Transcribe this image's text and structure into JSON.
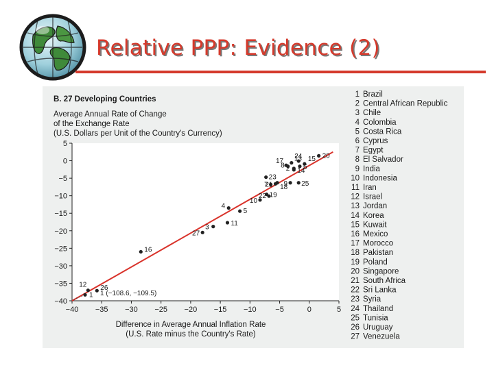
{
  "slide": {
    "title": "Relative PPP: Evidence (2)"
  },
  "icons": {
    "globe": "globe-icon"
  },
  "colors": {
    "title": "#d43a2c",
    "rule": "#d43a2c",
    "line": "#d9332b",
    "point": "#222222",
    "panel": "#eef0ef"
  },
  "chart_data": {
    "type": "scatter",
    "heading": "B. 27 Developing Countries",
    "ylabel_lines": [
      "Average Annual Rate of Change",
      "of the Exchange Rate",
      "(U.S. Dollars per Unit of the Country's Currency)"
    ],
    "xlabel_lines": [
      "Difference in Average Annual Inflation Rate",
      "(U.S. Rate minus the Country's Rate)"
    ],
    "xlim": [
      -40,
      5
    ],
    "ylim": [
      -40,
      5
    ],
    "xticks": [
      "−40",
      "−35",
      "−30",
      "−25",
      "−20",
      "−15",
      "−10",
      "−5",
      "0",
      "5"
    ],
    "yticks": [
      "5",
      "0",
      "−5",
      "−10",
      "−15",
      "−20",
      "−25",
      "−30",
      "−35",
      "−40"
    ],
    "fit_line": {
      "x": [
        -40,
        4
      ],
      "y": [
        -40,
        2.5
      ]
    },
    "outlier_note": "1 (−108.6, −109.5)",
    "points": [
      {
        "label": "1",
        "x": -37.8,
        "y": -38.3
      },
      {
        "label": "2",
        "x": -2.6,
        "y": -2.2
      },
      {
        "label": "3",
        "x": -16.2,
        "y": -18.8
      },
      {
        "label": "4",
        "x": -13.6,
        "y": -13.5
      },
      {
        "label": "5",
        "x": -11.7,
        "y": -14.4
      },
      {
        "label": "6",
        "x": -1.6,
        "y": -1.6
      },
      {
        "label": "7",
        "x": -6.5,
        "y": -6.8
      },
      {
        "label": "8",
        "x": -3.6,
        "y": -1.6
      },
      {
        "label": "9",
        "x": -3.2,
        "y": -6.3
      },
      {
        "label": "10",
        "x": -8.3,
        "y": -11.2
      },
      {
        "label": "11",
        "x": -13.8,
        "y": -17.7
      },
      {
        "label": "12",
        "x": -37.3,
        "y": -37.0
      },
      {
        "label": "13",
        "x": -3.0,
        "y": -0.6
      },
      {
        "label": "14",
        "x": -2.6,
        "y": -2.6
      },
      {
        "label": "15",
        "x": -0.8,
        "y": -0.9
      },
      {
        "label": "16",
        "x": -28.4,
        "y": -26.0
      },
      {
        "label": "17",
        "x": -3.9,
        "y": -1.3
      },
      {
        "label": "18",
        "x": -5.4,
        "y": -6.3
      },
      {
        "label": "19",
        "x": -7.2,
        "y": -9.6
      },
      {
        "label": "20",
        "x": 1.6,
        "y": 1.4
      },
      {
        "label": "21",
        "x": -5.7,
        "y": -6.6
      },
      {
        "label": "22",
        "x": -6.8,
        "y": -10.1
      },
      {
        "label": "23",
        "x": -7.3,
        "y": -4.7
      },
      {
        "label": "24",
        "x": -1.8,
        "y": -0.1
      },
      {
        "label": "25",
        "x": -1.8,
        "y": -6.3
      },
      {
        "label": "26",
        "x": -35.8,
        "y": -37.1
      },
      {
        "label": "27",
        "x": -18.0,
        "y": -20.5
      }
    ],
    "legend_placement": "right",
    "legend": [
      {
        "num": "1",
        "name": "Brazil"
      },
      {
        "num": "2",
        "name": "Central African Republic"
      },
      {
        "num": "3",
        "name": "Chile"
      },
      {
        "num": "4",
        "name": "Colombia"
      },
      {
        "num": "5",
        "name": "Costa Rica"
      },
      {
        "num": "6",
        "name": "Cyprus"
      },
      {
        "num": "7",
        "name": "Egypt"
      },
      {
        "num": "8",
        "name": "El Salvador"
      },
      {
        "num": "9",
        "name": "India"
      },
      {
        "num": "10",
        "name": "Indonesia"
      },
      {
        "num": "11",
        "name": "Iran"
      },
      {
        "num": "12",
        "name": "Israel"
      },
      {
        "num": "13",
        "name": "Jordan"
      },
      {
        "num": "14",
        "name": "Korea"
      },
      {
        "num": "15",
        "name": "Kuwait"
      },
      {
        "num": "16",
        "name": "Mexico"
      },
      {
        "num": "17",
        "name": "Morocco"
      },
      {
        "num": "18",
        "name": "Pakistan"
      },
      {
        "num": "19",
        "name": "Poland"
      },
      {
        "num": "20",
        "name": "Singapore"
      },
      {
        "num": "21",
        "name": "South Africa"
      },
      {
        "num": "22",
        "name": "Sri Lanka"
      },
      {
        "num": "23",
        "name": "Syria"
      },
      {
        "num": "24",
        "name": "Thailand"
      },
      {
        "num": "25",
        "name": "Tunisia"
      },
      {
        "num": "26",
        "name": "Uruguay"
      },
      {
        "num": "27",
        "name": "Venezuela"
      }
    ]
  }
}
